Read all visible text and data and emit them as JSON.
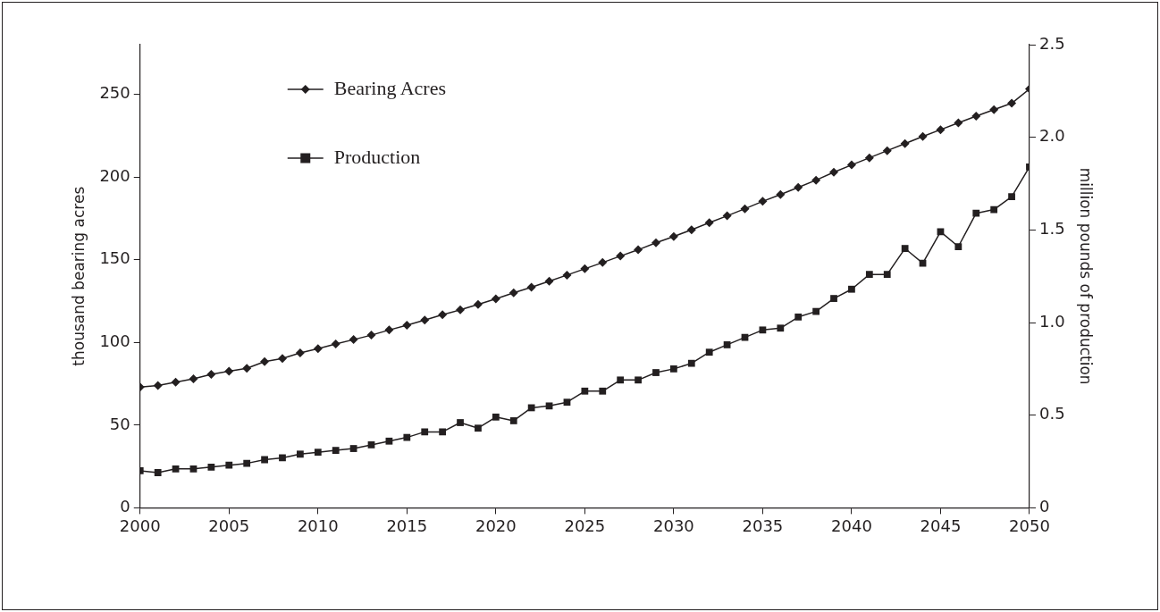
{
  "chart_data": {
    "type": "line",
    "xlabel": null,
    "ylabel": "thousand bearing acres",
    "y2label": "million pounds of production",
    "x": [
      2000,
      2001,
      2002,
      2003,
      2004,
      2005,
      2006,
      2007,
      2008,
      2009,
      2010,
      2011,
      2012,
      2013,
      2014,
      2015,
      2016,
      2017,
      2018,
      2019,
      2020,
      2021,
      2022,
      2023,
      2024,
      2025,
      2026,
      2027,
      2028,
      2029,
      2030,
      2031,
      2032,
      2033,
      2034,
      2035,
      2036,
      2037,
      2038,
      2039,
      2040,
      2041,
      2042,
      2043,
      2044,
      2045,
      2046,
      2047,
      2048,
      2049,
      2050
    ],
    "series": [
      {
        "name": "Bearing Acres",
        "color": "#231f20",
        "marker": "diamond",
        "values": [
          73,
          74,
          76,
          78,
          80.7,
          82.6,
          84.3,
          88.4,
          90.3,
          93.7,
          96.2,
          99.1,
          101.7,
          104.4,
          107.5,
          110.4,
          113.5,
          116.7,
          119.7,
          123,
          126.3,
          130,
          133.4,
          137,
          140.7,
          144.5,
          148.3,
          152.2,
          156,
          160.2,
          164,
          168.1,
          172.4,
          176.5,
          180.8,
          185.3,
          189.4,
          193.7,
          198.1,
          202.9,
          207.3,
          211.6,
          215.9,
          220.2,
          224.5,
          228.6,
          232.7,
          236.8,
          240.7,
          244.6,
          253.2
        ]
      },
      {
        "name": "Production",
        "color": "#231f20",
        "marker": "square",
        "axis": "y2",
        "values": [
          0.2,
          0.19,
          0.21,
          0.21,
          0.22,
          0.23,
          0.24,
          0.26,
          0.27,
          0.29,
          0.3,
          0.31,
          0.32,
          0.34,
          0.36,
          0.38,
          0.41,
          0.41,
          0.46,
          0.43,
          0.49,
          0.47,
          0.54,
          0.55,
          0.57,
          0.63,
          0.63,
          0.69,
          0.69,
          0.73,
          0.75,
          0.78,
          0.84,
          0.88,
          0.92,
          0.96,
          0.97,
          1.03,
          1.06,
          1.13,
          1.18,
          1.26,
          1.26,
          1.4,
          1.32,
          1.49,
          1.41,
          1.59,
          1.61,
          1.68,
          1.84
        ]
      }
    ],
    "xlim": [
      2000,
      2050
    ],
    "xticks": [
      2000,
      2005,
      2010,
      2015,
      2020,
      2025,
      2030,
      2035,
      2040,
      2045,
      2050
    ],
    "ylim": [
      0,
      280
    ],
    "yticks": [
      0,
      50,
      100,
      150,
      200,
      250
    ],
    "y2lim": [
      0,
      2.5
    ],
    "y2ticks": [
      0,
      {
        "value": 0.5,
        "label": "0.5"
      },
      {
        "value": 1,
        "label": "1.0"
      },
      {
        "value": 1.5,
        "label": "1.5"
      },
      {
        "value": 2,
        "label": "2.0"
      },
      {
        "value": 2.5,
        "label": "2.5"
      }
    ],
    "grid": false,
    "legend": "top left",
    "line_style": "solid"
  }
}
